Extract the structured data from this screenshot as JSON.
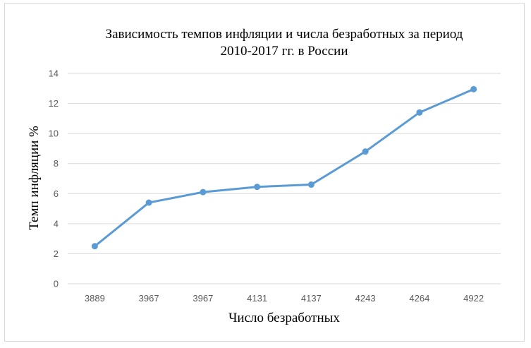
{
  "chart_data": {
    "type": "line",
    "title_lines": [
      "Зависимость темпов инфляции и числа безработных за период",
      "2010-2017 гг. в России"
    ],
    "xlabel": "Число безработных",
    "ylabel": "Темп инфляции %",
    "categories": [
      "3889",
      "3967",
      "3967",
      "4131",
      "4137",
      "4243",
      "4264",
      "4922"
    ],
    "series": [
      {
        "values": [
          2.5,
          5.4,
          6.1,
          6.45,
          6.6,
          8.8,
          11.4,
          12.95
        ]
      }
    ],
    "ylim": [
      0,
      14
    ],
    "yticks": [
      "0",
      "2",
      "4",
      "6",
      "8",
      "10",
      "12",
      "14"
    ],
    "grid": true,
    "legend": "none",
    "line_color": "#5b9bd5",
    "grid_color": "#d9d9d9"
  }
}
